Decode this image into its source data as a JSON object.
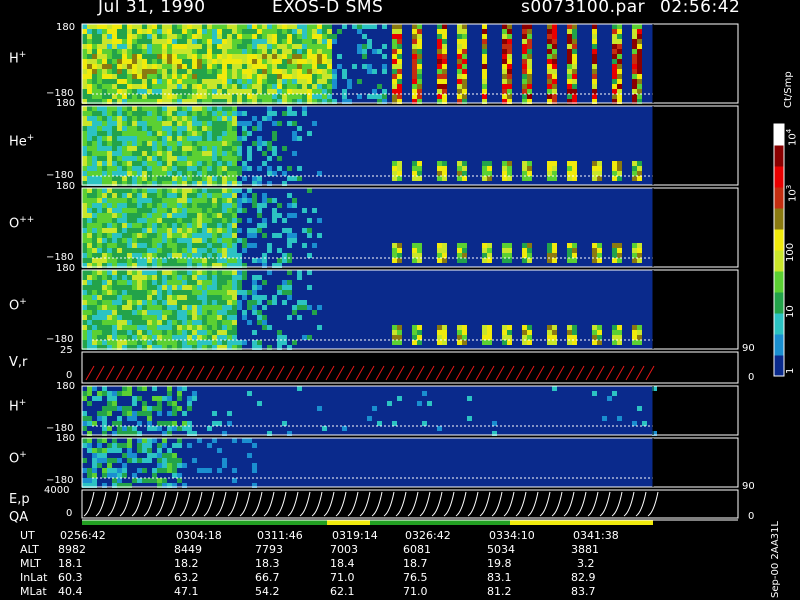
{
  "header": {
    "date": "Jul 31, 1990",
    "instrument": "EXOS-D SMS",
    "file": "s0073100.par",
    "time": "02:56:42"
  },
  "colors": {
    "bg": "#000000",
    "fg": "#ffffff",
    "scale": [
      "#0a2a8c",
      "#1a8fd0",
      "#2cc3c3",
      "#23a34a",
      "#5bd033",
      "#c9e62a",
      "#f0ea0c",
      "#8a7a10",
      "#c42e10",
      "#e80000",
      "#8a0000",
      "#ffffff"
    ]
  },
  "colorbar": {
    "unit": "Ct/Smp",
    "ticks": [
      "1",
      "10",
      "100",
      "10^3",
      "10^4"
    ]
  },
  "panels": [
    {
      "id": "h",
      "label": "H",
      "sup": "+",
      "ticks": [
        "180",
        "−180"
      ]
    },
    {
      "id": "he",
      "label": "He",
      "sup": "+",
      "ticks": [
        "180",
        "−180"
      ]
    },
    {
      "id": "opp",
      "label": "O",
      "sup": "++",
      "ticks": [
        "180",
        "−180"
      ]
    },
    {
      "id": "o",
      "label": "O",
      "sup": "+",
      "ticks": [
        "180",
        "−180"
      ]
    },
    {
      "id": "v",
      "label": "V,r",
      "sup": "",
      "ticks": [
        "25",
        "0"
      ],
      "right_ticks": [
        "90",
        "0"
      ]
    },
    {
      "id": "h2",
      "label": "H",
      "sup": "+",
      "ticks": [
        "180",
        "−180"
      ]
    },
    {
      "id": "o2",
      "label": "O",
      "sup": "+",
      "ticks": [
        "180",
        "−180"
      ]
    },
    {
      "id": "ep",
      "label": "E,p",
      "sup": "",
      "ticks": [
        "4000",
        "0"
      ],
      "right_ticks": [
        "90",
        "0"
      ]
    }
  ],
  "qa_label": "QA",
  "footer": {
    "rows": [
      {
        "name": "UT",
        "values": [
          "0256:42",
          "0304:18",
          "0311:46",
          "0319:14",
          "0326:42",
          "0334:10",
          "0341:38"
        ]
      },
      {
        "name": "ALT",
        "values": [
          "8982",
          "8449",
          "7793",
          "7003",
          "6081",
          "5034",
          "3881"
        ]
      },
      {
        "name": "MLT",
        "values": [
          "18.1",
          "18.2",
          "18.3",
          "18.4",
          "18.7",
          "19.8",
          "3.2"
        ]
      },
      {
        "name": "InLat",
        "values": [
          "60.3",
          "63.2",
          "66.7",
          "71.0",
          "76.5",
          "83.1",
          "82.9"
        ]
      },
      {
        "name": "MLat",
        "values": [
          "40.4",
          "47.1",
          "54.2",
          "62.1",
          "71.0",
          "81.2",
          "83.7"
        ]
      }
    ]
  },
  "run_id": "Sep-00 2AA31L",
  "chart_data": {
    "type": "heatmap",
    "title": "Jul 31, 1990  EXOS-D SMS",
    "x_ticks": [
      "0256:42",
      "0304:18",
      "0311:46",
      "0319:14",
      "0326:42",
      "0334:10",
      "0341:38"
    ],
    "series": [
      {
        "name": "H+",
        "ylim": [
          -180,
          180
        ]
      },
      {
        "name": "He+",
        "ylim": [
          -180,
          180
        ]
      },
      {
        "name": "O++",
        "ylim": [
          -180,
          180
        ]
      },
      {
        "name": "O+",
        "ylim": [
          -180,
          180
        ]
      },
      {
        "name": "V,r",
        "ylim": [
          0,
          25
        ]
      },
      {
        "name": "H+",
        "ylim": [
          -180,
          180
        ]
      },
      {
        "name": "O+",
        "ylim": [
          -180,
          180
        ]
      },
      {
        "name": "E,p",
        "ylim": [
          0,
          4000
        ]
      }
    ],
    "colorbar": {
      "label": "Ct/Smp",
      "scale": "log",
      "range": [
        1,
        10000
      ]
    }
  }
}
